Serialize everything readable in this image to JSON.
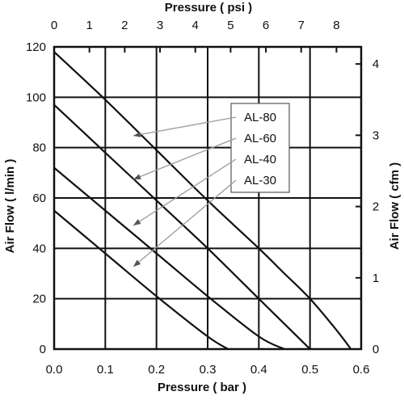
{
  "chart_data": {
    "type": "line",
    "xlabel": "Pressure ( bar )",
    "x2label": "Pressure ( psi )",
    "ylabel": "Air Flow ( l/min )",
    "y2label": "Air Flow ( cfm )",
    "xlim": [
      0,
      0.6
    ],
    "ylim": [
      0,
      120
    ],
    "x2lim": [
      0,
      8.7
    ],
    "y2lim": [
      0,
      4.24
    ],
    "x_ticks": [
      "0.0",
      "0.1",
      "0.2",
      "0.3",
      "0.4",
      "0.5",
      "0.6"
    ],
    "y_ticks": [
      "0",
      "20",
      "40",
      "60",
      "80",
      "100",
      "120"
    ],
    "x2_ticks": [
      "0",
      "1",
      "2",
      "3",
      "4",
      "5",
      "6",
      "7",
      "8"
    ],
    "y2_ticks": [
      "0",
      "1",
      "2",
      "3",
      "4"
    ],
    "grid": true,
    "legend_entries": [
      "AL-80",
      "AL-60",
      "AL-40",
      "AL-30"
    ],
    "series": [
      {
        "name": "AL-80",
        "x": [
          0,
          0.1,
          0.2,
          0.3,
          0.4,
          0.45,
          0.5,
          0.55,
          0.58
        ],
        "y": [
          118,
          99,
          79,
          59,
          40,
          30,
          20,
          8,
          0
        ]
      },
      {
        "name": "AL-60",
        "x": [
          0,
          0.1,
          0.2,
          0.3,
          0.4,
          0.45,
          0.5
        ],
        "y": [
          97,
          78,
          59,
          40,
          20,
          10,
          0
        ]
      },
      {
        "name": "AL-40",
        "x": [
          0,
          0.1,
          0.2,
          0.3,
          0.4,
          0.45
        ],
        "y": [
          72,
          55,
          38,
          21,
          5,
          0
        ]
      },
      {
        "name": "AL-30",
        "x": [
          0,
          0.1,
          0.2,
          0.3,
          0.34
        ],
        "y": [
          55,
          38,
          21,
          5,
          0
        ]
      }
    ]
  }
}
